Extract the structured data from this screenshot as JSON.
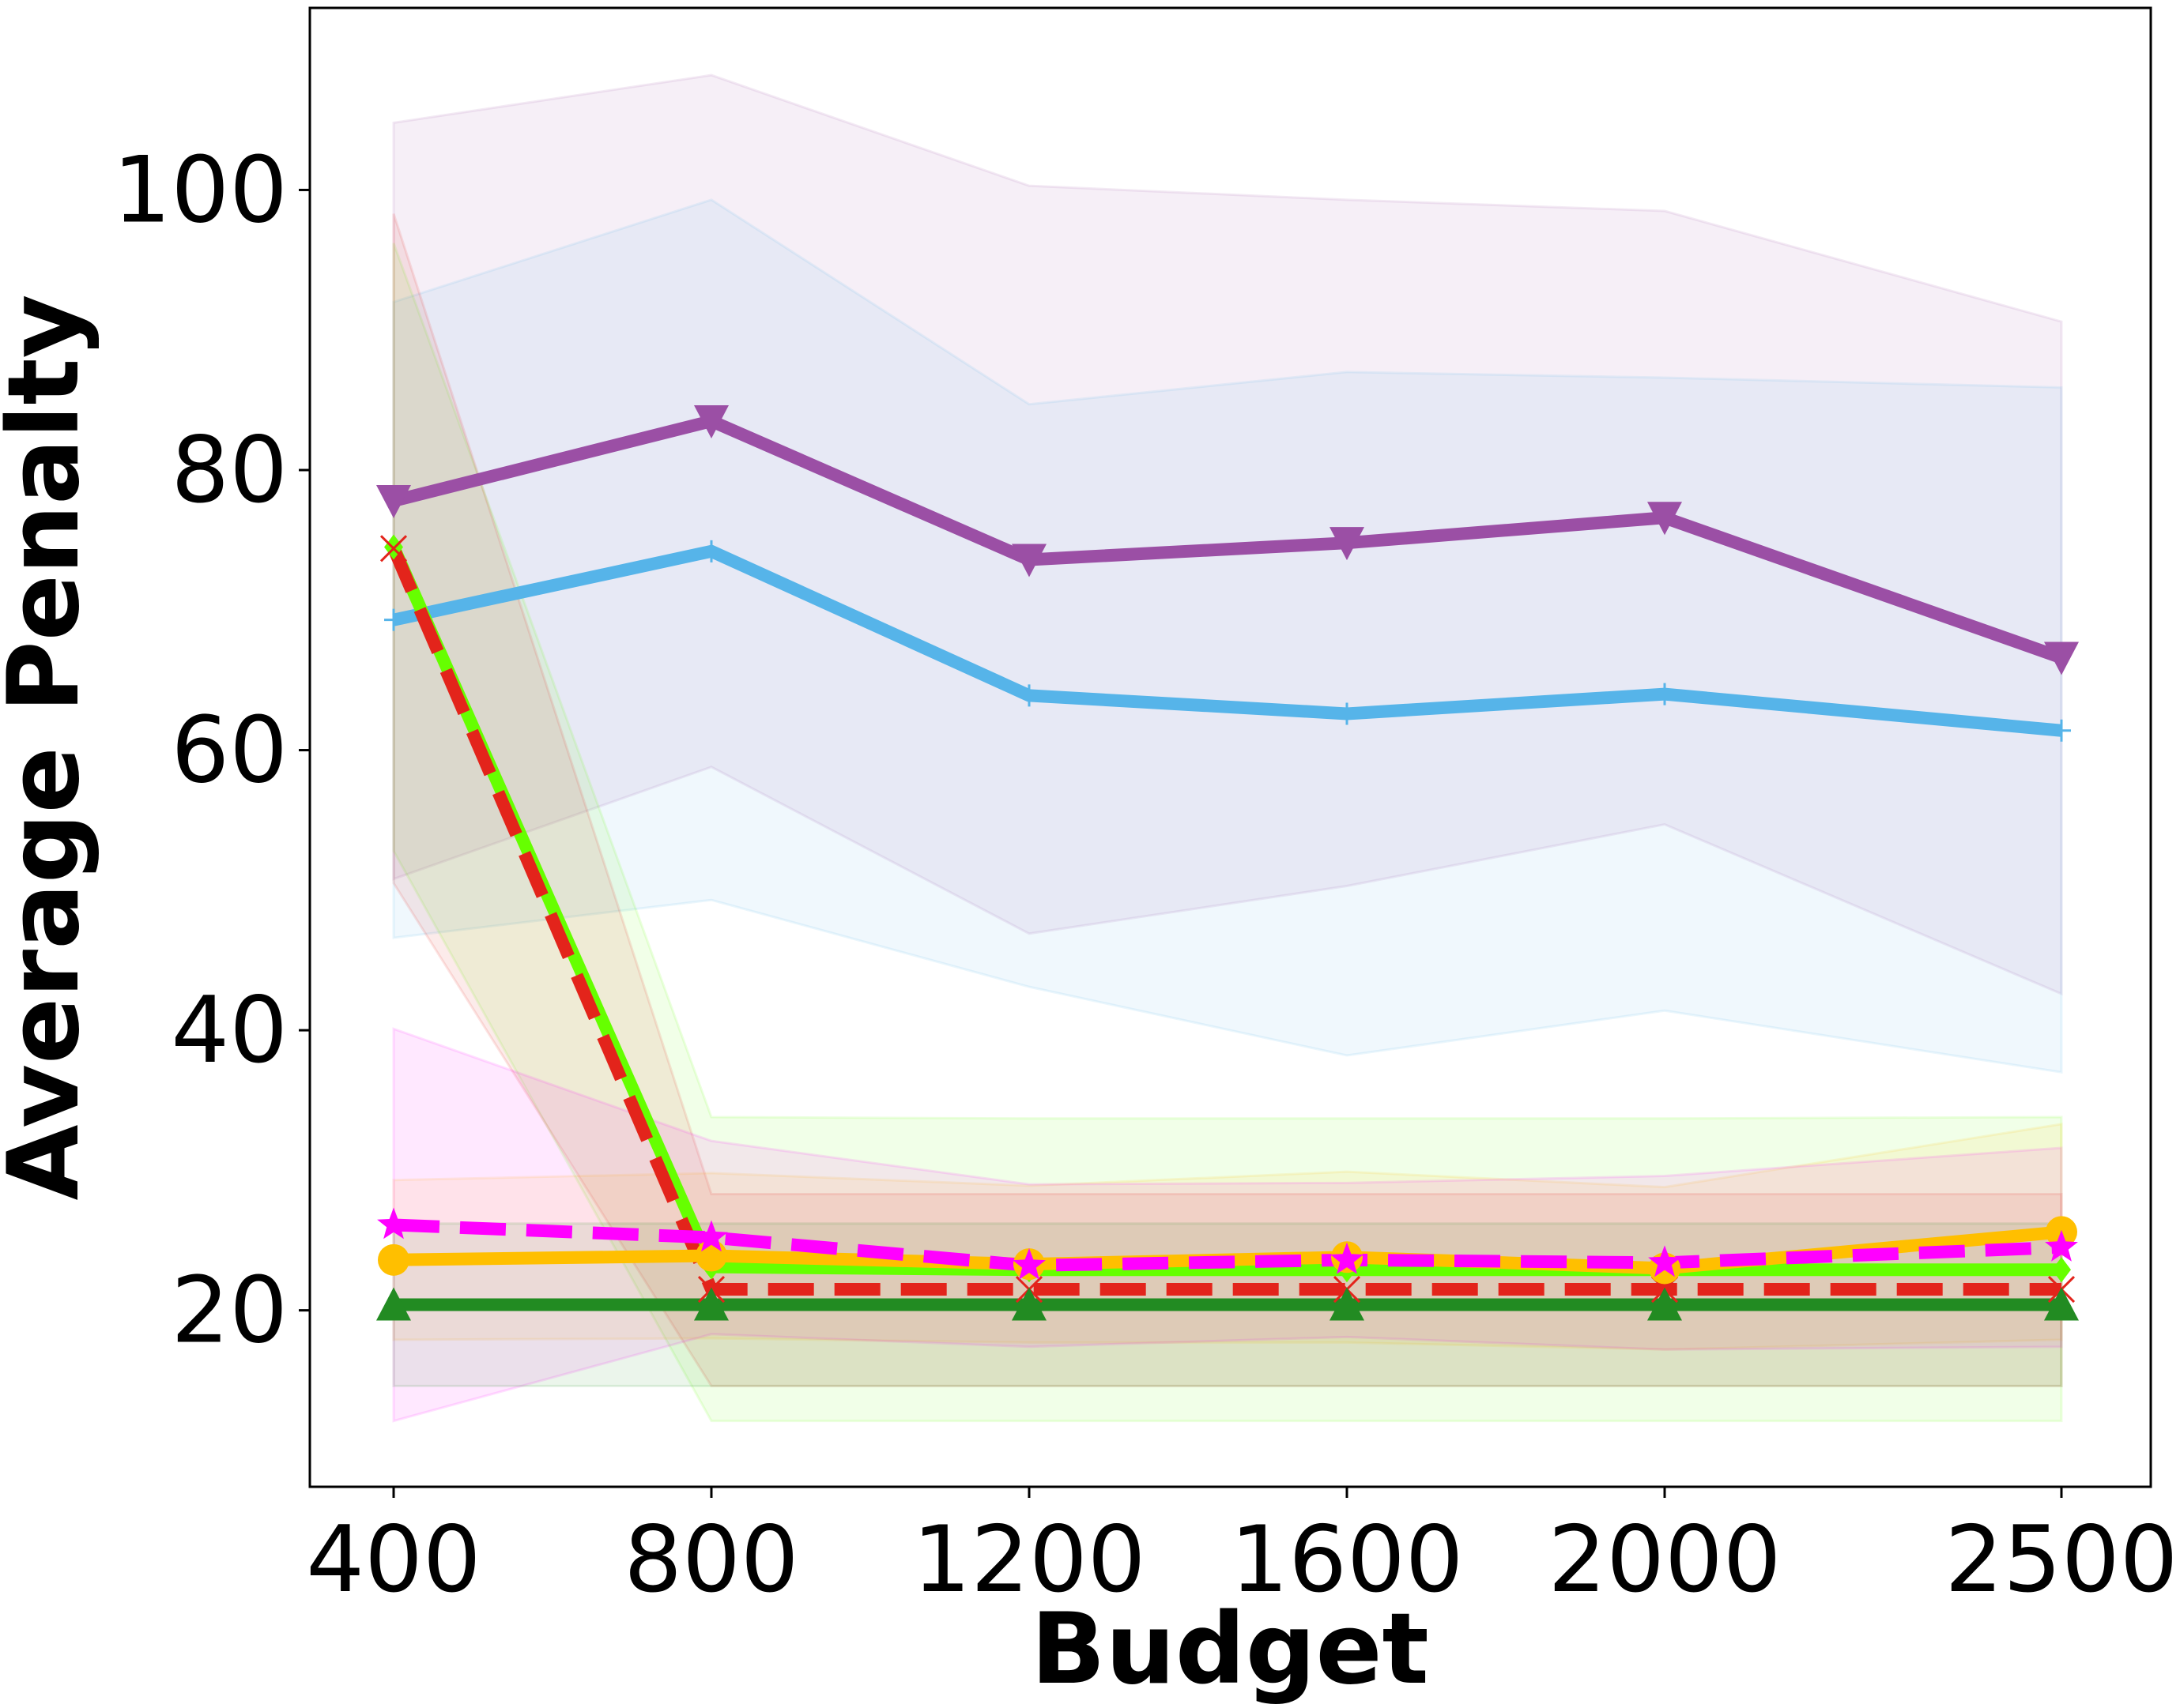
{
  "chart_data": {
    "type": "line",
    "title": "",
    "xlabel": "Budget",
    "ylabel": "Average Penalty",
    "x": [
      400,
      800,
      1200,
      1600,
      2000,
      2500
    ],
    "x_tick_labels": [
      "400",
      "800",
      "1200",
      "1600",
      "2000",
      "2500"
    ],
    "y_ticks": [
      20,
      40,
      60,
      80,
      100
    ],
    "y_tick_labels": [
      "20",
      "40",
      "60",
      "80",
      "100"
    ],
    "ylim": [
      7.4,
      113
    ],
    "grid": false,
    "legend": "none",
    "series": [
      {
        "color": "#9b4fa5",
        "line_style": "solid",
        "marker": "triangle-down",
        "values": [
          77.8,
          83.5,
          73.6,
          74.8,
          76.6,
          66.6
        ],
        "band_upper": [
          104.8,
          108.2,
          100.3,
          99.3,
          98.5,
          90.6
        ],
        "band_lower": [
          50.8,
          58.8,
          46.9,
          50.3,
          54.7,
          42.6
        ]
      },
      {
        "color": "#56b4e9",
        "line_style": "solid",
        "marker": "plus",
        "values": [
          69.3,
          74.2,
          63.9,
          62.6,
          64.0,
          61.4
        ],
        "band_upper": [
          92.0,
          99.3,
          84.7,
          87.0,
          86.6,
          85.9
        ],
        "band_lower": [
          46.6,
          49.3,
          43.1,
          38.2,
          41.4,
          37.0
        ]
      },
      {
        "color": "#66ff00",
        "line_style": "solid",
        "marker": "diamond",
        "values": [
          74.5,
          23.1,
          22.9,
          22.9,
          22.9,
          22.9
        ],
        "band_upper": [
          96.2,
          33.8,
          33.7,
          33.7,
          33.7,
          33.8
        ],
        "band_lower": [
          52.8,
          12.1,
          12.1,
          12.1,
          12.1,
          12.1
        ]
      },
      {
        "color": "#e3241b",
        "line_style": "dashed",
        "marker": "x",
        "values": [
          74.4,
          21.5,
          21.5,
          21.5,
          21.5,
          21.5
        ],
        "band_upper": [
          98.3,
          28.3,
          28.3,
          28.3,
          28.3,
          28.3
        ],
        "band_lower": [
          50.5,
          14.6,
          14.6,
          14.6,
          14.6,
          14.6
        ]
      },
      {
        "color": "#ffbf00",
        "line_style": "solid",
        "marker": "circle",
        "values": [
          23.6,
          23.9,
          23.3,
          23.8,
          23.0,
          25.6
        ],
        "band_upper": [
          29.3,
          29.8,
          28.9,
          29.9,
          28.8,
          33.3
        ],
        "band_lower": [
          17.9,
          18.0,
          17.7,
          17.7,
          17.2,
          17.9
        ]
      },
      {
        "color": "#ff00ff",
        "line_style": "dashed",
        "marker": "star",
        "values": [
          26.1,
          25.2,
          23.2,
          23.6,
          23.4,
          24.5
        ],
        "band_upper": [
          40.1,
          32.1,
          29.0,
          29.1,
          29.6,
          31.6
        ],
        "band_lower": [
          12.1,
          18.3,
          17.4,
          18.1,
          17.2,
          17.4
        ]
      },
      {
        "color": "#228b22",
        "line_style": "solid",
        "marker": "triangle-up",
        "values": [
          20.4,
          20.4,
          20.4,
          20.4,
          20.4,
          20.4
        ],
        "band_upper": [
          26.2,
          26.2,
          26.2,
          26.2,
          26.2,
          26.2
        ],
        "band_lower": [
          14.6,
          14.6,
          14.6,
          14.6,
          14.6,
          14.6
        ]
      }
    ]
  }
}
